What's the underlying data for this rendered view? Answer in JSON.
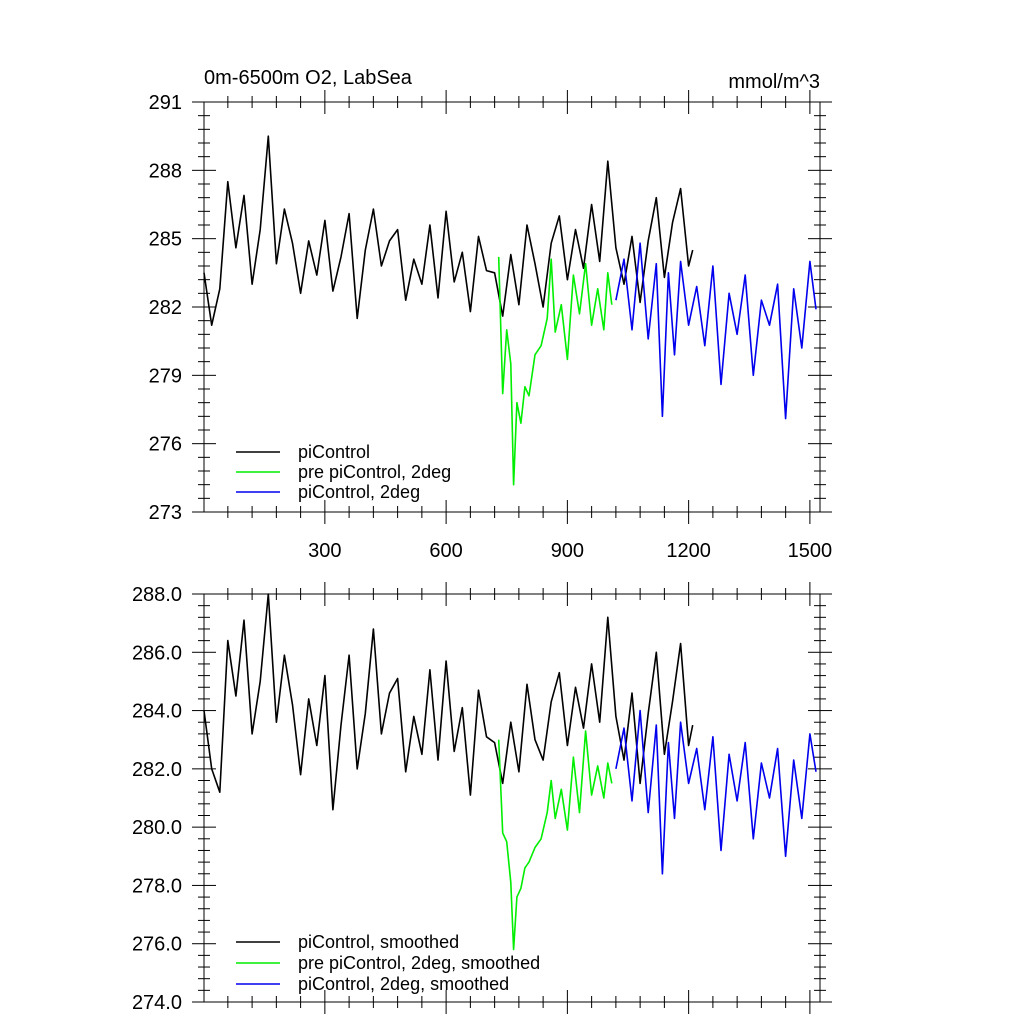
{
  "figure": {
    "title_left": "0m-6500m O2, LabSea",
    "title_right": "mmol/m^3"
  },
  "colors": {
    "piControl": "#000000",
    "pre_piControl_2deg": "#00ee00",
    "piControl_2deg": "#0000ee"
  },
  "chart_data": [
    {
      "type": "line",
      "title": "0m-6500m O2, LabSea",
      "units": "mmol/m^3",
      "xlabel": "",
      "ylabel": "",
      "xlim": [
        1,
        1525
      ],
      "ylim": [
        273,
        291
      ],
      "x_ticks": [
        300,
        600,
        900,
        1200,
        1500
      ],
      "x_tick_labels": [
        "300",
        "600",
        "900",
        "1200",
        "1500"
      ],
      "y_ticks": [
        273,
        276,
        279,
        282,
        285,
        288,
        291
      ],
      "y_tick_labels": [
        "273",
        "276",
        "279",
        "282",
        "285",
        "288",
        "291"
      ],
      "legend_position": "bottom-left",
      "series": [
        {
          "name": "piControl",
          "color_key": "piControl",
          "x": [
            1,
            20,
            40,
            60,
            80,
            100,
            120,
            140,
            160,
            180,
            200,
            220,
            240,
            260,
            280,
            300,
            320,
            340,
            360,
            380,
            400,
            420,
            440,
            460,
            480,
            500,
            520,
            540,
            560,
            580,
            600,
            620,
            640,
            660,
            680,
            700,
            720,
            740,
            760,
            780,
            800,
            820,
            840,
            860,
            880,
            900,
            920,
            940,
            960,
            980,
            1000,
            1020,
            1040,
            1060,
            1080,
            1100,
            1120,
            1140,
            1160,
            1180,
            1200,
            1210
          ],
          "values": [
            283.5,
            281.2,
            282.8,
            287.5,
            284.6,
            286.9,
            283.0,
            285.4,
            289.5,
            283.9,
            286.3,
            284.8,
            282.6,
            284.9,
            283.4,
            285.8,
            282.7,
            284.2,
            286.1,
            281.5,
            284.5,
            286.3,
            283.8,
            284.9,
            285.4,
            282.3,
            284.1,
            283.0,
            285.6,
            282.4,
            286.2,
            283.1,
            284.4,
            281.8,
            285.1,
            283.6,
            283.5,
            281.6,
            284.3,
            282.1,
            285.6,
            283.9,
            282.0,
            284.8,
            286.0,
            283.2,
            285.4,
            283.7,
            286.5,
            284.0,
            288.4,
            284.6,
            283.0,
            285.1,
            282.2,
            284.9,
            286.8,
            283.3,
            285.7,
            287.2,
            283.8,
            284.5
          ]
        },
        {
          "name": "pre piControl, 2deg",
          "color_key": "pre_piControl_2deg",
          "x": [
            730,
            740,
            750,
            760,
            767,
            775,
            785,
            795,
            805,
            820,
            835,
            850,
            860,
            870,
            885,
            900,
            915,
            930,
            945,
            960,
            975,
            990,
            1000,
            1010
          ],
          "values": [
            284.2,
            278.2,
            281.0,
            279.5,
            274.2,
            277.8,
            276.9,
            278.5,
            278.1,
            279.9,
            280.3,
            281.5,
            284.1,
            280.9,
            282.1,
            279.7,
            283.4,
            281.7,
            283.9,
            281.2,
            282.8,
            281.0,
            283.5,
            282.1
          ]
        },
        {
          "name": "piControl, 2deg",
          "color_key": "piControl_2deg",
          "x": [
            1020,
            1040,
            1060,
            1080,
            1100,
            1120,
            1135,
            1150,
            1165,
            1180,
            1200,
            1220,
            1240,
            1260,
            1280,
            1300,
            1320,
            1340,
            1360,
            1380,
            1400,
            1420,
            1440,
            1460,
            1480,
            1500,
            1515
          ],
          "values": [
            282.3,
            284.1,
            281.0,
            284.8,
            280.6,
            283.9,
            277.2,
            283.5,
            279.9,
            284.0,
            281.2,
            282.9,
            280.3,
            283.8,
            278.6,
            282.6,
            280.8,
            283.4,
            279.0,
            282.3,
            281.2,
            283.0,
            277.1,
            282.8,
            280.2,
            284.0,
            281.9
          ]
        }
      ],
      "legend": [
        {
          "label": "piControl",
          "color_key": "piControl"
        },
        {
          "label": "pre piControl, 2deg",
          "color_key": "pre_piControl_2deg"
        },
        {
          "label": "piControl, 2deg",
          "color_key": "piControl_2deg"
        }
      ]
    },
    {
      "type": "line",
      "title": "",
      "xlabel": "",
      "ylabel": "",
      "xlim": [
        1,
        1525
      ],
      "ylim": [
        274,
        288
      ],
      "x_ticks": [
        300,
        600,
        900,
        1200,
        1500
      ],
      "y_ticks": [
        274,
        276,
        278,
        280,
        282,
        284,
        286,
        288
      ],
      "y_tick_labels": [
        "274.0",
        "276.0",
        "278.0",
        "280.0",
        "282.0",
        "284.0",
        "286.0",
        "288.0"
      ],
      "legend_position": "bottom-left",
      "series": [
        {
          "name": "piControl, smoothed",
          "color_key": "piControl",
          "x": [
            1,
            20,
            40,
            60,
            80,
            100,
            120,
            140,
            160,
            180,
            200,
            220,
            240,
            260,
            280,
            300,
            320,
            340,
            360,
            380,
            400,
            420,
            440,
            460,
            480,
            500,
            520,
            540,
            560,
            580,
            600,
            620,
            640,
            660,
            680,
            700,
            720,
            740,
            760,
            780,
            800,
            820,
            840,
            860,
            880,
            900,
            920,
            940,
            960,
            980,
            1000,
            1020,
            1040,
            1060,
            1080,
            1100,
            1120,
            1140,
            1160,
            1180,
            1200,
            1210
          ],
          "values": [
            284.0,
            282.0,
            281.2,
            286.4,
            284.5,
            287.1,
            283.2,
            285.0,
            288.0,
            283.6,
            285.9,
            284.2,
            281.8,
            284.4,
            282.8,
            285.2,
            280.6,
            283.5,
            285.9,
            282.0,
            283.9,
            286.8,
            283.2,
            284.6,
            285.1,
            281.9,
            283.8,
            282.5,
            285.4,
            282.3,
            285.7,
            282.6,
            284.1,
            281.1,
            284.7,
            283.1,
            282.9,
            281.5,
            283.6,
            281.9,
            284.9,
            283.0,
            282.3,
            284.3,
            285.3,
            282.8,
            284.8,
            283.4,
            285.6,
            283.6,
            287.2,
            283.8,
            282.3,
            284.6,
            281.5,
            283.9,
            286.0,
            282.5,
            284.3,
            286.3,
            282.8,
            283.5
          ]
        },
        {
          "name": "pre piControl, 2deg, smoothed",
          "color_key": "pre_piControl_2deg",
          "x": [
            730,
            740,
            750,
            760,
            767,
            775,
            785,
            795,
            805,
            820,
            835,
            850,
            860,
            870,
            885,
            900,
            915,
            930,
            945,
            960,
            975,
            990,
            1000,
            1010
          ],
          "values": [
            283.0,
            279.8,
            279.5,
            278.1,
            275.8,
            277.6,
            277.9,
            278.6,
            278.8,
            279.3,
            279.6,
            280.5,
            281.6,
            280.3,
            281.3,
            279.9,
            282.4,
            280.5,
            283.3,
            281.1,
            282.1,
            281.0,
            282.2,
            281.5
          ]
        },
        {
          "name": "piControl, 2deg, smoothed",
          "color_key": "piControl_2deg",
          "x": [
            1020,
            1040,
            1060,
            1080,
            1100,
            1120,
            1135,
            1150,
            1165,
            1180,
            1200,
            1220,
            1240,
            1260,
            1280,
            1300,
            1320,
            1340,
            1360,
            1380,
            1400,
            1420,
            1440,
            1460,
            1480,
            1500,
            1515
          ],
          "values": [
            282.0,
            283.4,
            280.9,
            284.0,
            280.5,
            283.5,
            278.4,
            282.9,
            280.3,
            283.6,
            281.5,
            282.7,
            280.6,
            283.1,
            279.2,
            282.5,
            280.9,
            282.9,
            279.6,
            282.2,
            281.0,
            282.7,
            279.0,
            282.3,
            280.3,
            283.2,
            281.9
          ]
        }
      ],
      "legend": [
        {
          "label": "piControl, smoothed",
          "color_key": "piControl"
        },
        {
          "label": "pre piControl, 2deg, smoothed",
          "color_key": "pre_piControl_2deg"
        },
        {
          "label": "piControl, 2deg, smoothed",
          "color_key": "piControl_2deg"
        }
      ]
    }
  ]
}
